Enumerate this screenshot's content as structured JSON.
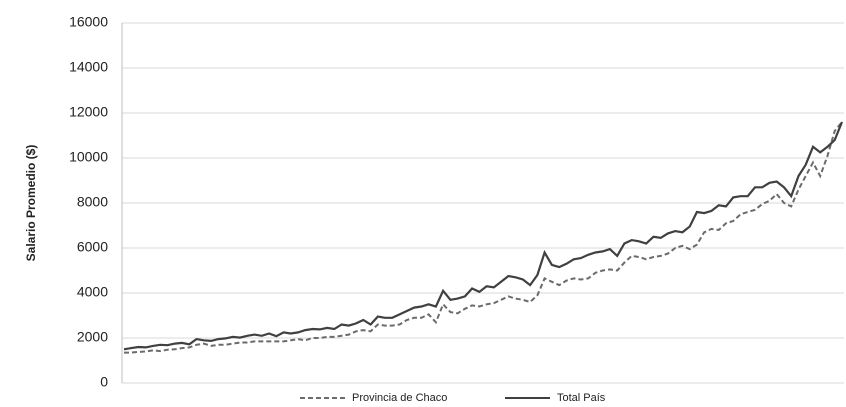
{
  "chart_data": {
    "type": "line",
    "y_label": "Salario Promedio ($)",
    "categories": [
      null,
      null,
      null,
      null,
      null,
      null,
      null,
      null,
      null,
      null,
      null,
      null,
      null,
      null,
      null,
      null,
      null,
      null,
      null,
      null,
      null,
      null,
      null,
      null,
      null,
      null,
      null,
      null,
      null,
      null,
      null,
      null,
      null,
      null,
      null,
      null,
      null,
      null,
      null,
      null,
      null,
      null,
      null,
      null,
      null,
      null,
      null,
      null,
      null,
      null,
      null,
      null,
      null,
      null,
      null,
      null,
      null,
      null,
      null,
      null,
      null,
      null,
      null,
      null,
      null,
      null,
      null,
      null,
      null,
      null,
      null,
      null,
      null,
      null,
      null,
      null,
      null,
      null,
      null,
      null,
      null,
      null,
      null,
      null,
      null,
      null,
      null,
      null,
      null,
      null,
      null,
      null,
      null,
      null,
      null,
      null,
      null,
      null,
      null,
      null
    ],
    "series": [
      {
        "name": "Provincia de Chaco",
        "color": "#6b6b6b",
        "dashed": true,
        "values": [
          1350,
          1350,
          1380,
          1400,
          1450,
          1420,
          1480,
          1500,
          1550,
          1580,
          1700,
          1750,
          1650,
          1700,
          1700,
          1750,
          1800,
          1800,
          1850,
          1850,
          1850,
          1850,
          1850,
          1900,
          1950,
          1900,
          2000,
          2000,
          2050,
          2050,
          2100,
          2150,
          2300,
          2350,
          2300,
          2600,
          2550,
          2550,
          2600,
          2800,
          2900,
          2900,
          3050,
          2700,
          3500,
          3150,
          3100,
          3300,
          3450,
          3400,
          3500,
          3550,
          3700,
          3850,
          3750,
          3700,
          3600,
          3900,
          4650,
          4500,
          4350,
          4550,
          4650,
          4600,
          4650,
          4900,
          5000,
          5050,
          5000,
          5350,
          5650,
          5600,
          5500,
          5600,
          5650,
          5750,
          6000,
          6100,
          5950,
          6150,
          6700,
          6850,
          6800,
          7100,
          7200,
          7500,
          7600,
          7700,
          7950,
          8100,
          8400,
          8000,
          7850,
          8600,
          9200,
          9800,
          9200,
          10100,
          11200,
          11600
        ]
      },
      {
        "name": "Total País",
        "color": "#404040",
        "dashed": false,
        "values": [
          1500,
          1550,
          1600,
          1580,
          1650,
          1700,
          1680,
          1750,
          1780,
          1720,
          1950,
          1900,
          1870,
          1950,
          1980,
          2050,
          2020,
          2100,
          2150,
          2100,
          2200,
          2080,
          2250,
          2200,
          2250,
          2350,
          2400,
          2380,
          2450,
          2400,
          2600,
          2550,
          2650,
          2800,
          2600,
          2950,
          2900,
          2900,
          3050,
          3200,
          3350,
          3400,
          3500,
          3400,
          4100,
          3700,
          3750,
          3850,
          4200,
          4050,
          4300,
          4250,
          4500,
          4750,
          4700,
          4600,
          4350,
          4800,
          5800,
          5250,
          5150,
          5300,
          5500,
          5550,
          5700,
          5800,
          5850,
          5950,
          5650,
          6200,
          6350,
          6300,
          6200,
          6500,
          6450,
          6650,
          6750,
          6700,
          6950,
          7600,
          7550,
          7650,
          7900,
          7850,
          8250,
          8300,
          8300,
          8700,
          8700,
          8900,
          8950,
          8700,
          8300,
          9200,
          9700,
          10500,
          10250,
          10500,
          10800,
          11600
        ]
      }
    ],
    "ylim": [
      0,
      16000
    ],
    "yticks": [
      0,
      2000,
      4000,
      6000,
      8000,
      10000,
      12000,
      14000,
      16000
    ],
    "grid": true,
    "legend": "bottom"
  }
}
